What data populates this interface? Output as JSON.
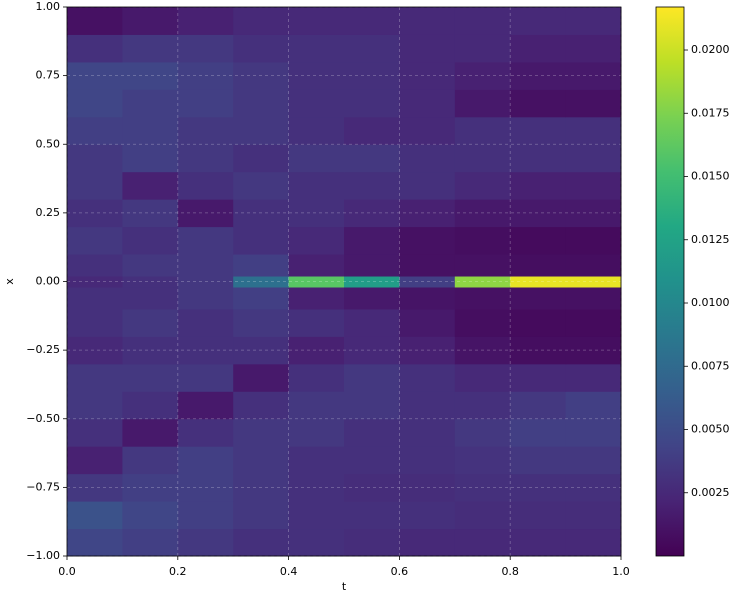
{
  "chart_data": {
    "type": "heatmap",
    "xlabel": "t",
    "ylabel": "x",
    "colormap": "viridis",
    "x_edges": [
      0,
      0.1,
      0.2,
      0.3,
      0.4,
      0.5,
      0.6,
      0.7,
      0.8,
      0.9,
      1.0
    ],
    "y_edges": [
      -1,
      -0.9,
      -0.8,
      -0.7,
      -0.6,
      -0.5,
      -0.4,
      -0.3,
      -0.2,
      -0.1,
      -0.02,
      0.02,
      0.1,
      0.2,
      0.3,
      0.4,
      0.5,
      0.6,
      0.7,
      0.8,
      0.9,
      1
    ],
    "z": [
      [
        0.0045,
        0.004,
        0.0035,
        0.003,
        0.003,
        0.0028,
        0.0025,
        0.0025,
        0.0025,
        0.0025
      ],
      [
        0.0055,
        0.0045,
        0.004,
        0.0035,
        0.003,
        0.003,
        0.003,
        0.0028,
        0.0028,
        0.0028
      ],
      [
        0.0035,
        0.004,
        0.004,
        0.0035,
        0.003,
        0.0028,
        0.0028,
        0.003,
        0.003,
        0.003
      ],
      [
        0.002,
        0.0035,
        0.004,
        0.0035,
        0.003,
        0.003,
        0.003,
        0.0032,
        0.0035,
        0.0035
      ],
      [
        0.003,
        0.0015,
        0.003,
        0.0035,
        0.0035,
        0.003,
        0.003,
        0.0035,
        0.004,
        0.004
      ],
      [
        0.0035,
        0.003,
        0.0015,
        0.003,
        0.0035,
        0.0035,
        0.003,
        0.003,
        0.0035,
        0.004
      ],
      [
        0.0035,
        0.0035,
        0.0035,
        0.0015,
        0.003,
        0.0035,
        0.003,
        0.0025,
        0.0025,
        0.0025
      ],
      [
        0.0025,
        0.003,
        0.003,
        0.003,
        0.002,
        0.0025,
        0.002,
        0.0012,
        0.0008,
        0.0008
      ],
      [
        0.003,
        0.0035,
        0.003,
        0.0035,
        0.003,
        0.0025,
        0.0015,
        0.0008,
        0.0006,
        0.0006
      ],
      [
        0.003,
        0.003,
        0.0035,
        0.004,
        0.002,
        0.0015,
        0.0012,
        0.001,
        0.001,
        0.001
      ],
      [
        0.0025,
        0.003,
        0.0035,
        0.008,
        0.016,
        0.012,
        0.004,
        0.018,
        0.021,
        0.021
      ],
      [
        0.003,
        0.0035,
        0.0035,
        0.004,
        0.002,
        0.0015,
        0.001,
        0.001,
        0.0008,
        0.0008
      ],
      [
        0.0035,
        0.003,
        0.0035,
        0.003,
        0.0025,
        0.0015,
        0.001,
        0.0008,
        0.0006,
        0.0006
      ],
      [
        0.003,
        0.0035,
        0.0015,
        0.003,
        0.003,
        0.0025,
        0.002,
        0.0015,
        0.0015,
        0.0015
      ],
      [
        0.0035,
        0.002,
        0.003,
        0.0035,
        0.003,
        0.003,
        0.003,
        0.0025,
        0.002,
        0.002
      ],
      [
        0.0035,
        0.004,
        0.0035,
        0.003,
        0.0035,
        0.0035,
        0.003,
        0.003,
        0.003,
        0.003
      ],
      [
        0.004,
        0.004,
        0.0035,
        0.0035,
        0.003,
        0.0025,
        0.0025,
        0.003,
        0.003,
        0.003
      ],
      [
        0.0045,
        0.004,
        0.004,
        0.0035,
        0.003,
        0.003,
        0.0025,
        0.0015,
        0.001,
        0.001
      ],
      [
        0.0045,
        0.0045,
        0.004,
        0.0035,
        0.003,
        0.003,
        0.0025,
        0.002,
        0.0015,
        0.0015
      ],
      [
        0.003,
        0.0035,
        0.0035,
        0.003,
        0.003,
        0.003,
        0.0025,
        0.0025,
        0.002,
        0.002
      ],
      [
        0.001,
        0.0015,
        0.002,
        0.0025,
        0.0025,
        0.0025,
        0.0025,
        0.0025,
        0.0025,
        0.0025
      ]
    ],
    "xlim": [
      0,
      1
    ],
    "ylim": [
      -1,
      1
    ],
    "clim": [
      0,
      0.0217
    ],
    "xticks": [
      {
        "value": 0,
        "label": "0.0"
      },
      {
        "value": 0.2,
        "label": "0.2"
      },
      {
        "value": 0.4,
        "label": "0.4"
      },
      {
        "value": 0.6,
        "label": "0.6"
      },
      {
        "value": 0.8,
        "label": "0.8"
      },
      {
        "value": 1,
        "label": "1.0"
      }
    ],
    "yticks": [
      {
        "value": -1,
        "label": "−1.00"
      },
      {
        "value": -0.75,
        "label": "−0.75"
      },
      {
        "value": -0.5,
        "label": "−0.50"
      },
      {
        "value": -0.25,
        "label": "−0.25"
      },
      {
        "value": 0,
        "label": "0.00"
      },
      {
        "value": 0.25,
        "label": "0.25"
      },
      {
        "value": 0.5,
        "label": "0.50"
      },
      {
        "value": 0.75,
        "label": "0.75"
      },
      {
        "value": 1,
        "label": "1.00"
      }
    ],
    "cticks": [
      {
        "value": 0.0025,
        "label": "0.0025"
      },
      {
        "value": 0.005,
        "label": "0.0050"
      },
      {
        "value": 0.0075,
        "label": "0.0075"
      },
      {
        "value": 0.01,
        "label": "0.0100"
      },
      {
        "value": 0.0125,
        "label": "0.0125"
      },
      {
        "value": 0.015,
        "label": "0.0150"
      },
      {
        "value": 0.0175,
        "label": "0.0175"
      },
      {
        "value": 0.02,
        "label": "0.0200"
      }
    ],
    "grid": true
  }
}
